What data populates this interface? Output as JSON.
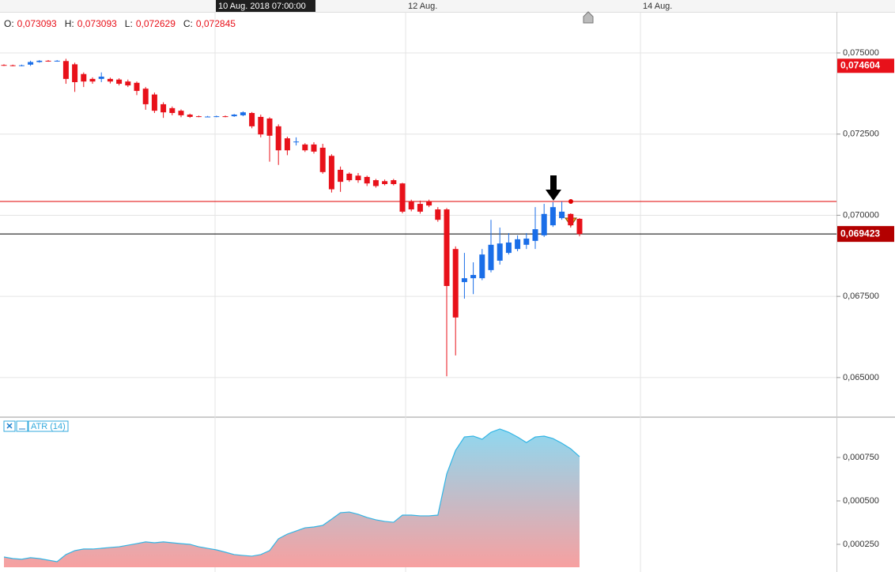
{
  "header": {
    "ohlc": [
      {
        "label": "O:",
        "value": "0,073093"
      },
      {
        "label": "H:",
        "value": "0,073093"
      },
      {
        "label": "L:",
        "value": "0,072629"
      },
      {
        "label": "C:",
        "value": "0,072845"
      }
    ]
  },
  "chart_data": [
    {
      "type": "candlestick",
      "categories": [
        null,
        null,
        null,
        null,
        null,
        null,
        null,
        null,
        null,
        null,
        null,
        null,
        null,
        null,
        null,
        null,
        null,
        null,
        null,
        null,
        null,
        null,
        null,
        null,
        null,
        null,
        null,
        null,
        null,
        null,
        null,
        null,
        null,
        null,
        null,
        null,
        null,
        null,
        null,
        null,
        null,
        null,
        null,
        null,
        null,
        null,
        null,
        null,
        null,
        null,
        null,
        null,
        null,
        null,
        null,
        null,
        null,
        null,
        null,
        null,
        null,
        null,
        null,
        null,
        null,
        null
      ],
      "open": [
        0.07463,
        0.07462,
        0.07461,
        0.07464,
        0.07472,
        0.07476,
        0.07475,
        0.07475,
        0.07465,
        0.07435,
        0.0742,
        0.0742,
        0.0742,
        0.07418,
        0.07412,
        0.07408,
        0.0739,
        0.07372,
        0.07342,
        0.0733,
        0.07322,
        0.0731,
        0.07305,
        0.07304,
        0.07304,
        0.07305,
        0.07305,
        0.07308,
        0.07315,
        0.07303,
        0.07298,
        0.07274,
        0.07237,
        0.07225,
        0.07218,
        0.07218,
        0.07208,
        0.07183,
        0.0714,
        0.07128,
        0.07122,
        0.07118,
        0.07108,
        0.07105,
        0.07108,
        0.07098,
        0.07042,
        0.07035,
        0.07042,
        0.07018,
        0.07018,
        0.06896,
        0.06794,
        0.06806,
        0.06806,
        0.06831,
        0.0686,
        0.06884,
        0.06896,
        0.06909,
        0.06921,
        0.06938,
        0.06969,
        0.06991,
        0.07004,
        0.06989
      ],
      "high": [
        0.07465,
        0.07464,
        0.07464,
        0.07476,
        0.07478,
        0.07478,
        0.07478,
        0.07482,
        0.0747,
        0.0744,
        0.07425,
        0.0744,
        0.07424,
        0.07422,
        0.07418,
        0.07412,
        0.07395,
        0.07378,
        0.07348,
        0.07335,
        0.07326,
        0.07313,
        0.07307,
        0.07306,
        0.07307,
        0.07307,
        0.07312,
        0.0732,
        0.07318,
        0.0731,
        0.07302,
        0.0728,
        0.07242,
        0.0724,
        0.07222,
        0.07225,
        0.0722,
        0.07188,
        0.0715,
        0.07132,
        0.0713,
        0.07122,
        0.07112,
        0.0711,
        0.07112,
        0.071,
        0.07048,
        0.07045,
        0.07048,
        0.07025,
        0.07022,
        0.06904,
        0.06884,
        0.06855,
        0.06896,
        0.06986,
        0.06962,
        0.06945,
        0.06938,
        0.06945,
        0.07025,
        0.07035,
        0.0704,
        0.07042,
        0.07006,
        0.06991
      ],
      "low": [
        0.0746,
        0.07459,
        0.07459,
        0.0746,
        0.0747,
        0.07473,
        0.07473,
        0.07405,
        0.0738,
        0.07395,
        0.07405,
        0.0741,
        0.07406,
        0.074,
        0.07395,
        0.0737,
        0.07325,
        0.07315,
        0.073,
        0.07308,
        0.07302,
        0.073,
        0.07302,
        0.07302,
        0.07302,
        0.07302,
        0.07303,
        0.07305,
        0.07268,
        0.0724,
        0.07165,
        0.07155,
        0.07185,
        0.07215,
        0.07195,
        0.0719,
        0.07128,
        0.0707,
        0.07072,
        0.07103,
        0.071,
        0.0709,
        0.07085,
        0.07092,
        0.07092,
        0.07006,
        0.07012,
        0.07005,
        0.07025,
        0.0698,
        0.06504,
        0.06568,
        0.06743,
        0.06757,
        0.068,
        0.06824,
        0.06848,
        0.06879,
        0.06889,
        0.06896,
        0.06896,
        0.06933,
        0.06964,
        0.06986,
        0.06962,
        0.06935
      ],
      "close": [
        0.07462,
        0.07461,
        0.07462,
        0.07472,
        0.07476,
        0.07475,
        0.07476,
        0.0742,
        0.0741,
        0.07412,
        0.07412,
        0.07427,
        0.07412,
        0.07405,
        0.074,
        0.07383,
        0.07342,
        0.07322,
        0.07317,
        0.07315,
        0.07308,
        0.07303,
        0.07304,
        0.07304,
        0.07305,
        0.07304,
        0.0731,
        0.07317,
        0.07274,
        0.07249,
        0.07245,
        0.072,
        0.072,
        0.07227,
        0.072,
        0.07196,
        0.07133,
        0.0708,
        0.07103,
        0.07108,
        0.07108,
        0.07098,
        0.0709,
        0.07096,
        0.07096,
        0.07011,
        0.07018,
        0.07011,
        0.0703,
        0.06986,
        0.06782,
        0.06685,
        0.06806,
        0.06816,
        0.06879,
        0.06909,
        0.06913,
        0.06916,
        0.06926,
        0.06928,
        0.06957,
        0.07004,
        0.07025,
        0.07011,
        0.06969,
        0.06942
      ],
      "up_color": "#1a6ee8",
      "down_color": "#e8111a",
      "ylim": [
        0.063804,
        0.076266
      ],
      "yticks": [
        {
          "value": 0.075,
          "label": "0,075000"
        },
        {
          "value": 0.0725,
          "label": "0,072500"
        },
        {
          "value": 0.07,
          "label": "0,070000"
        },
        {
          "value": 0.0675,
          "label": "0,067500"
        },
        {
          "value": 0.065,
          "label": "0,065000"
        }
      ],
      "xticks": [
        {
          "value": 45.36,
          "label": "12 Aug."
        },
        {
          "value": 71.88,
          "label": "14 Aug."
        }
      ],
      "crosshair": {
        "value": 23.84,
        "label": "10 Aug. 2018 07:00:00"
      },
      "levels": [
        {
          "value": 0.070424,
          "color": "#e00000"
        },
        {
          "value": 0.069423,
          "color": "#000000",
          "label": "0,069423",
          "label_color": "#b30000"
        }
      ],
      "price_marker": {
        "value": 0.074604,
        "label": "0,074604",
        "color": "#e8111a"
      },
      "grid": true
    },
    {
      "type": "area",
      "title": "ATR (14)",
      "color": "#33b5e5",
      "fill_top": "#8fd8f0",
      "fill_bottom": "#f7a0a0",
      "values": [
        0.000177,
        0.000168,
        0.000164,
        0.000173,
        0.000168,
        0.000159,
        0.00015,
        0.000191,
        0.000214,
        0.000223,
        0.000223,
        0.000227,
        0.000232,
        0.000236,
        0.000245,
        0.000254,
        0.000264,
        0.000259,
        0.000264,
        0.000259,
        0.000254,
        0.00025,
        0.000236,
        0.000227,
        0.000218,
        0.000205,
        0.000191,
        0.000186,
        0.000182,
        0.000191,
        0.000214,
        0.000282,
        0.000309,
        0.000327,
        0.000345,
        0.00035,
        0.000359,
        0.000395,
        0.000432,
        0.000436,
        0.000423,
        0.000405,
        0.000391,
        0.000382,
        0.000377,
        0.000418,
        0.000418,
        0.000414,
        0.000414,
        0.000418,
        0.000655,
        0.000791,
        0.000868,
        0.000873,
        0.000855,
        0.000895,
        0.000914,
        0.000895,
        0.000868,
        0.000836,
        0.000868,
        0.000873,
        0.000859,
        0.000832,
        0.0008,
        0.000755
      ],
      "ylim": [
        0.000118,
        0.000973
      ],
      "yticks": [
        {
          "value": 0.00075,
          "label": "0,000750"
        },
        {
          "value": 0.0005,
          "label": "0,000500"
        },
        {
          "value": 0.00025,
          "label": "0,000250"
        }
      ]
    }
  ]
}
